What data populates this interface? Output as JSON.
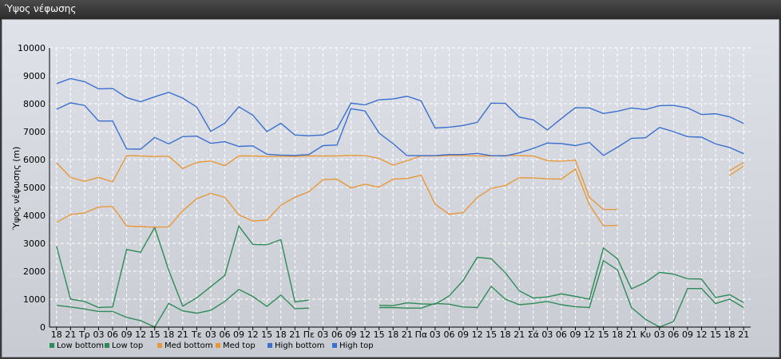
{
  "window": {
    "title": "Ύψος νέφωσης"
  },
  "colors": {
    "low": "#2e8b57",
    "med": "#e8983a",
    "high": "#3a6fd0",
    "grid": "#ffffff",
    "axis": "#000000"
  },
  "chart_data": {
    "type": "line",
    "title": "",
    "xlabel": "",
    "ylabel": "Ύψος νέφωσης (m)",
    "ylim": [
      0,
      10000
    ],
    "yticks": [
      0,
      1000,
      2000,
      3000,
      4000,
      5000,
      6000,
      7000,
      8000,
      9000,
      10000
    ],
    "grid": true,
    "legend_position": "bottom-left",
    "categories": [
      "18",
      "21",
      "Τρ",
      "03",
      "06",
      "09",
      "12",
      "15",
      "18",
      "21",
      "Τε",
      "03",
      "06",
      "09",
      "12",
      "15",
      "18",
      "21",
      "Πε",
      "03",
      "06",
      "09",
      "12",
      "15",
      "18",
      "21",
      "Πα",
      "03",
      "06",
      "09",
      "12",
      "15",
      "18",
      "21",
      "Σά",
      "03",
      "06",
      "09",
      "12",
      "15",
      "18",
      "21",
      "Κυ",
      "03",
      "06",
      "09",
      "12",
      "15",
      "18",
      "21"
    ],
    "series": [
      {
        "name": "Low bottom",
        "color_key": "low",
        "values": [
          780,
          720,
          650,
          560,
          560,
          350,
          230,
          0,
          850,
          580,
          500,
          600,
          920,
          1350,
          1100,
          740,
          1150,
          660,
          680,
          null,
          null,
          null,
          null,
          700,
          700,
          680,
          680,
          850,
          820,
          720,
          700,
          1460,
          1000,
          800,
          850,
          920,
          800,
          730,
          700,
          2380,
          2050,
          700,
          280,
          0,
          200,
          1380,
          1380,
          840,
          1000,
          700
        ]
      },
      {
        "name": "Low top",
        "color_key": "low",
        "values": [
          2900,
          1000,
          920,
          700,
          720,
          2780,
          2680,
          3570,
          2030,
          750,
          1050,
          1450,
          1850,
          3620,
          2960,
          2950,
          3130,
          900,
          970,
          null,
          null,
          null,
          null,
          780,
          770,
          870,
          830,
          820,
          1120,
          1670,
          2500,
          2450,
          1950,
          1300,
          1040,
          1080,
          1190,
          1100,
          1000,
          2830,
          2450,
          1370,
          1600,
          1960,
          1900,
          1730,
          1720,
          1060,
          1160,
          880
        ]
      },
      {
        "name": "Med bottom",
        "color_key": "med",
        "values": [
          3750,
          4030,
          4090,
          4300,
          4320,
          3620,
          3600,
          3580,
          3590,
          4160,
          4600,
          4790,
          4650,
          4020,
          3800,
          3830,
          4360,
          4650,
          4850,
          5280,
          5300,
          4980,
          5120,
          5010,
          5300,
          5320,
          5440,
          4400,
          4040,
          4100,
          4640,
          4970,
          5070,
          5350,
          5340,
          5310,
          5300,
          5660,
          4380,
          3630,
          3640,
          null,
          null,
          null,
          null,
          null,
          null,
          null,
          5430,
          5770
        ]
      },
      {
        "name": "Med top",
        "color_key": "med",
        "values": [
          5890,
          5360,
          5220,
          5360,
          5200,
          6140,
          6130,
          6110,
          6120,
          5680,
          5900,
          5950,
          5780,
          6130,
          6130,
          6110,
          6120,
          6110,
          6130,
          6130,
          6130,
          6150,
          6140,
          6040,
          5800,
          5960,
          6130,
          6130,
          6140,
          6150,
          6130,
          6130,
          6150,
          6140,
          6130,
          5960,
          5940,
          5980,
          4650,
          4210,
          4210,
          null,
          null,
          null,
          null,
          null,
          null,
          null,
          5600,
          5900
        ]
      },
      {
        "name": "High bottom",
        "color_key": "high",
        "values": [
          7800,
          8030,
          7940,
          7380,
          7380,
          6380,
          6370,
          6790,
          6560,
          6820,
          6840,
          6580,
          6640,
          6470,
          6490,
          6190,
          6160,
          6150,
          6180,
          6500,
          6520,
          7820,
          7740,
          6950,
          6570,
          6140,
          6140,
          6140,
          6180,
          6180,
          6220,
          6140,
          6130,
          6240,
          6400,
          6590,
          6570,
          6500,
          6610,
          6150,
          6440,
          6760,
          6780,
          7150,
          7000,
          6820,
          6800,
          6560,
          6430,
          6210
        ]
      },
      {
        "name": "High top",
        "color_key": "high",
        "values": [
          8720,
          8900,
          8790,
          8530,
          8550,
          8220,
          8070,
          8250,
          8410,
          8200,
          7880,
          7010,
          7300,
          7890,
          7590,
          7000,
          7300,
          6880,
          6850,
          6880,
          7100,
          8020,
          7960,
          8140,
          8170,
          8270,
          8100,
          7130,
          7160,
          7220,
          7330,
          8020,
          8010,
          7520,
          7420,
          7060,
          7470,
          7860,
          7850,
          7650,
          7730,
          7850,
          7790,
          7930,
          7940,
          7850,
          7610,
          7640,
          7530,
          7290
        ]
      }
    ]
  }
}
